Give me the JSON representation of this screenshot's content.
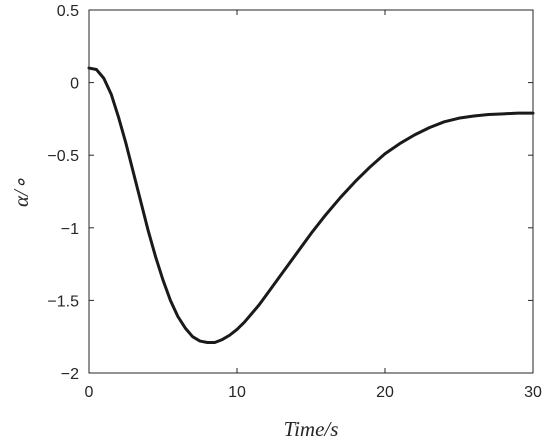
{
  "chart_data": {
    "type": "line",
    "title": "",
    "xlabel": "Time/s",
    "ylabel": "α/∘",
    "xlim": [
      0,
      30
    ],
    "ylim": [
      -2,
      0.5
    ],
    "xticks": [
      0,
      10,
      20,
      30
    ],
    "xtick_labels": [
      "0",
      "10",
      "20",
      "30"
    ],
    "yticks": [
      0.5,
      0,
      -0.5,
      -1,
      -1.5,
      -2
    ],
    "ytick_labels": [
      "0.5",
      "0",
      "−0.5",
      "−1",
      "−1.5",
      "−2"
    ],
    "grid": false,
    "line_color": "#1a1a1a",
    "series": [
      {
        "x": [
          0,
          0.5,
          1,
          1.5,
          2,
          2.5,
          3,
          3.5,
          4,
          4.5,
          5,
          5.5,
          6,
          6.5,
          7,
          7.5,
          8,
          8.5,
          9,
          9.5,
          10,
          10.5,
          11,
          11.5,
          12,
          13,
          14,
          15,
          16,
          17,
          18,
          19,
          20,
          21,
          22,
          23,
          24,
          25,
          26,
          27,
          28,
          29,
          30
        ],
        "y": [
          0.1,
          0.09,
          0.03,
          -0.08,
          -0.24,
          -0.42,
          -0.62,
          -0.82,
          -1.02,
          -1.2,
          -1.36,
          -1.5,
          -1.61,
          -1.69,
          -1.75,
          -1.78,
          -1.79,
          -1.79,
          -1.77,
          -1.74,
          -1.7,
          -1.65,
          -1.59,
          -1.53,
          -1.46,
          -1.32,
          -1.18,
          -1.04,
          -0.91,
          -0.79,
          -0.68,
          -0.58,
          -0.49,
          -0.42,
          -0.36,
          -0.31,
          -0.27,
          -0.245,
          -0.23,
          -0.22,
          -0.215,
          -0.21,
          -0.21
        ]
      }
    ]
  }
}
